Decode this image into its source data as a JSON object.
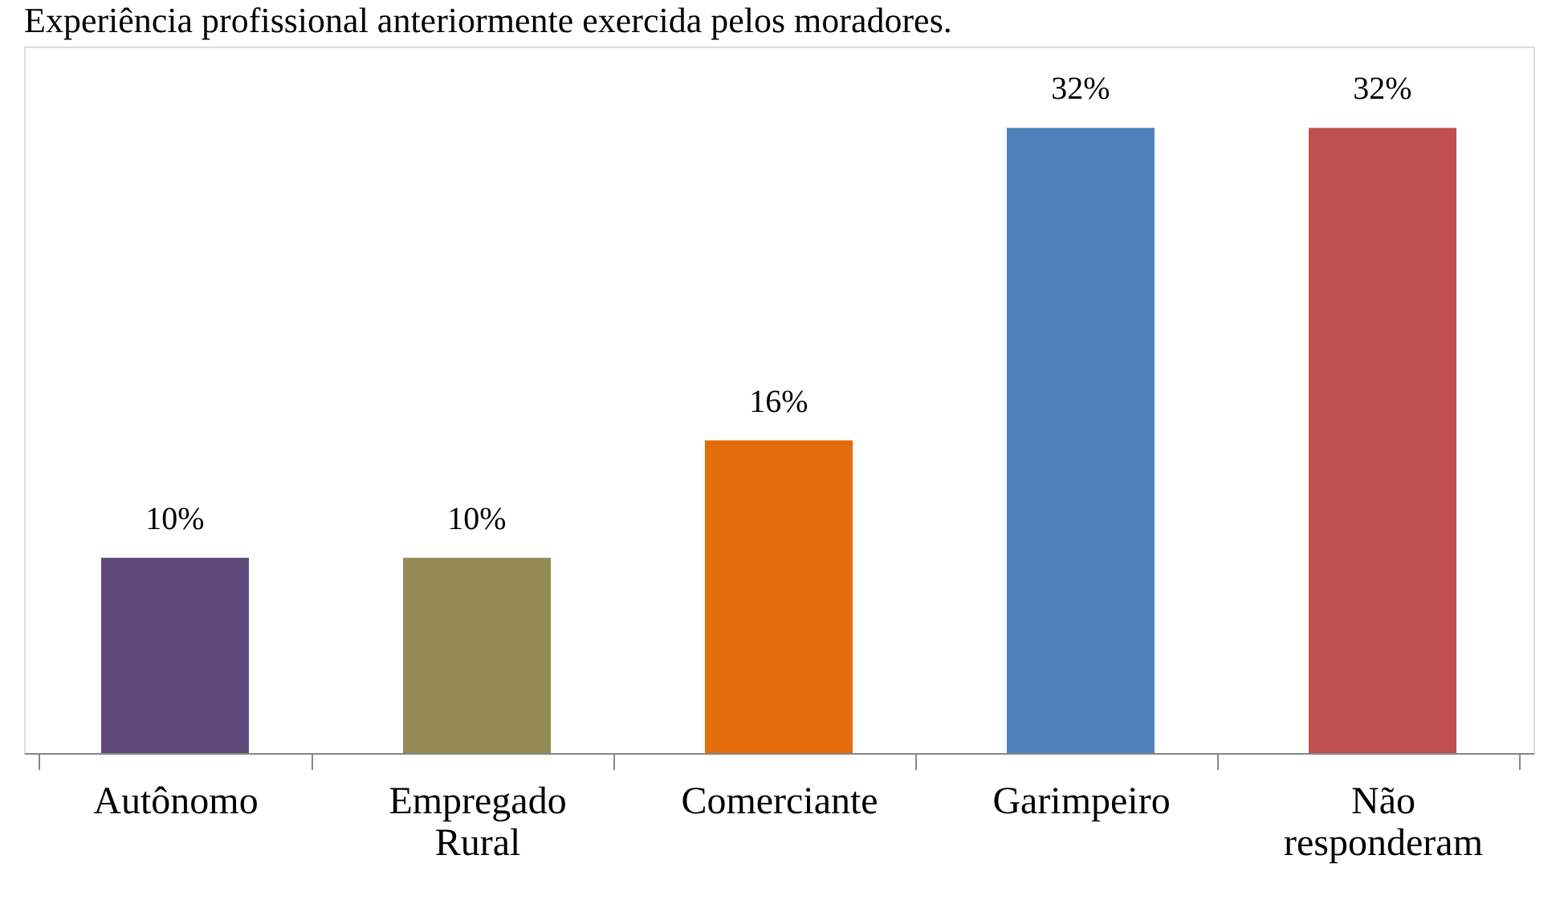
{
  "chart_data": {
    "type": "bar",
    "title": "Experiência profissional anteriormente exercida pelos moradores.",
    "categories": [
      "Autônomo",
      "Empregado Rural",
      "Comerciante",
      "Garimpeiro",
      "Não responderam"
    ],
    "values": [
      10,
      10,
      16,
      32,
      32
    ],
    "value_labels": [
      "10%",
      "10%",
      "16%",
      "32%",
      "32%"
    ],
    "colors": [
      "#604a7b",
      "#948a54",
      "#e46c0a",
      "#4f81bd",
      "#c0504d"
    ],
    "grid": false,
    "legend": false
  }
}
